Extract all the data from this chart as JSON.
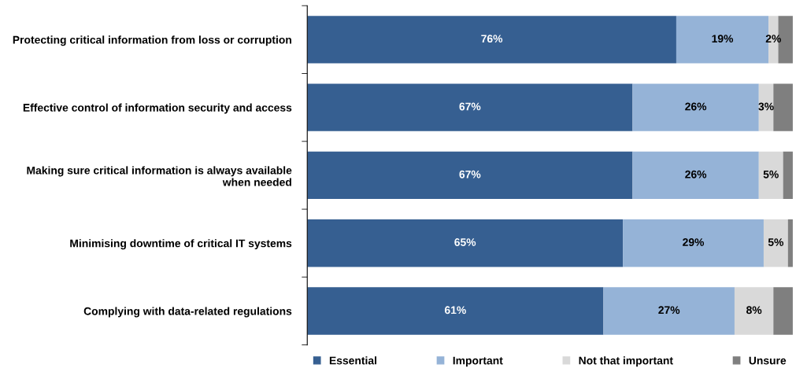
{
  "chart_data": {
    "type": "bar",
    "orientation": "horizontal",
    "stacked": true,
    "categories": [
      "Protecting critical information from loss or corruption",
      "Effective control of information security and access",
      "Making sure critical information is always available\nwhen needed",
      "Minimising downtime of critical IT systems",
      "Complying with data-related regulations"
    ],
    "series": [
      {
        "name": "Essential",
        "color": "#365f91",
        "values": [
          76,
          67,
          67,
          65,
          61
        ],
        "value_labels": [
          "76%",
          "67%",
          "67%",
          "65%",
          "61%"
        ]
      },
      {
        "name": "Important",
        "color": "#95b3d7",
        "values": [
          19,
          26,
          26,
          29,
          27
        ],
        "value_labels": [
          "19%",
          "26%",
          "26%",
          "29%",
          "27%"
        ]
      },
      {
        "name": "Not that important",
        "color": "#d9d9d9",
        "values": [
          2,
          3,
          5,
          5,
          8
        ],
        "value_labels": [
          "2%",
          "3%",
          "5%",
          "5%",
          "8%"
        ]
      },
      {
        "name": "Unsure",
        "color": "#7f7f7f",
        "values": [
          3,
          4,
          2,
          1,
          4
        ]
      }
    ],
    "xlim": [
      0,
      100
    ],
    "tick_labels": "y",
    "legend": "bottom",
    "grid": false
  }
}
